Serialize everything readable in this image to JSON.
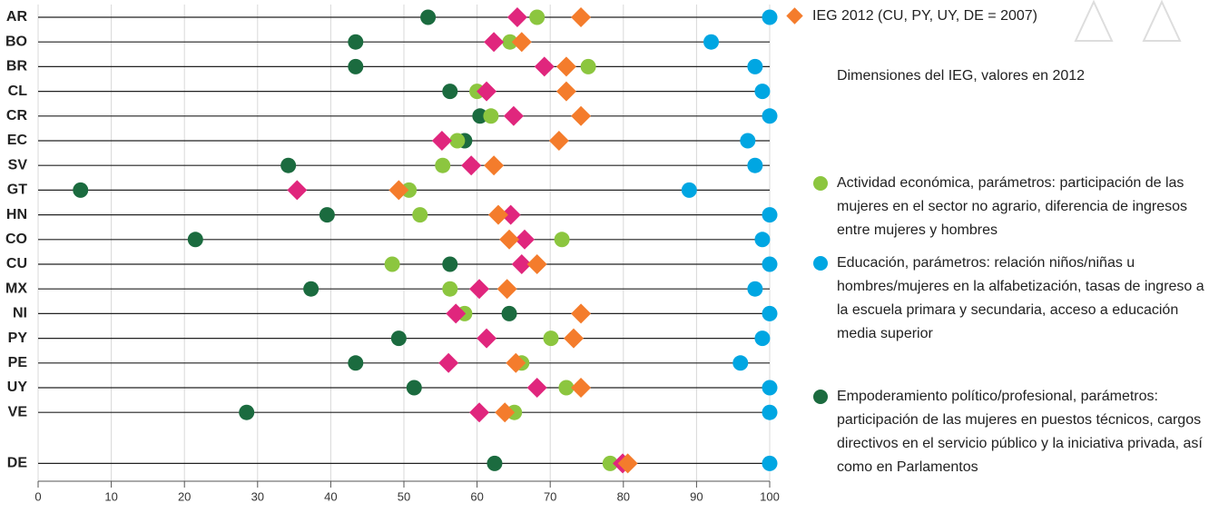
{
  "chart_data": {
    "type": "dot",
    "categories": [
      "AR",
      "BO",
      "BR",
      "CL",
      "CR",
      "EC",
      "SV",
      "GT",
      "HN",
      "CO",
      "CU",
      "MX",
      "NI",
      "PY",
      "PE",
      "UY",
      "VE",
      "DE"
    ],
    "xlim": [
      0,
      100
    ],
    "xticks": [
      0,
      10,
      20,
      30,
      40,
      50,
      60,
      70,
      80,
      90,
      100
    ],
    "grid": true,
    "legend_title": "Dimensiones del IEG, valores en 2012",
    "series": [
      {
        "name": "Educación, parámetros: relación niños/niñas u hombres/mujeres en la alfabetización, tasas de ingreso a la escuela primara y secundaria, acceso a educación media superior",
        "color": "#00a6e2",
        "marker": "circle",
        "values": [
          100,
          92,
          98,
          99,
          100,
          97,
          98,
          89,
          100,
          99,
          100,
          98,
          100,
          99,
          96,
          100,
          100,
          100
        ]
      },
      {
        "name": "Empoderamiento político/profesional, parámetros: participación de las mujeres en puestos  técnicos, cargos directivos en el servicio público y la iniciativa privada, así como en Parlamentos",
        "color": "#1b6b3f",
        "marker": "circle",
        "values": [
          53.3,
          43.4,
          43.4,
          56.3,
          60.4,
          58.3,
          34.2,
          5.8,
          39.5,
          21.5,
          56.3,
          37.3,
          64.4,
          49.3,
          43.4,
          51.4,
          28.5,
          62.4
        ]
      },
      {
        "name": "Actividad económica, parámetros: participación de las mujeres en el sector no agrario, diferencia de ingresos entre mujeres y hombres",
        "color": "#8cc63f",
        "marker": "circle",
        "values": [
          68.2,
          64.5,
          75.2,
          60,
          61.9,
          57.3,
          55.3,
          50.7,
          52.2,
          71.6,
          48.4,
          56.3,
          58.3,
          70.1,
          66.1,
          72.2,
          65.1,
          78.2
        ]
      },
      {
        "color": "#e0267d",
        "marker": "diamond",
        "values": [
          65.5,
          62.3,
          69.2,
          61.3,
          65,
          55.2,
          59.2,
          35.4,
          64.6,
          66.5,
          66.1,
          60.3,
          57.1,
          61.3,
          56.1,
          68.2,
          60.3,
          79.9
        ]
      },
      {
        "name": "IEG 2012 (CU, PY, UY, DE = 2007)",
        "color": "#f47c2c",
        "marker": "diamond",
        "values": [
          74.2,
          66.1,
          72.2,
          72.2,
          74.2,
          71.2,
          62.3,
          49.3,
          62.9,
          64.4,
          68.2,
          64.1,
          74.2,
          73.2,
          65.3,
          74.2,
          63.8,
          80.6
        ]
      }
    ]
  }
}
